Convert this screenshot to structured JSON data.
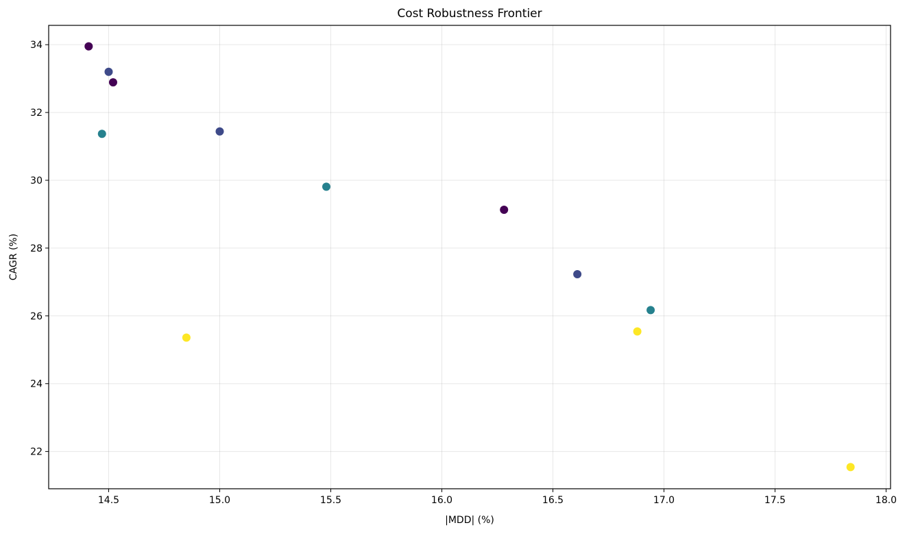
{
  "chart_data": {
    "type": "scatter",
    "title": "Cost Robustness Frontier",
    "xlabel": "|MDD| (%)",
    "ylabel": "CAGR (%)",
    "xlim": [
      14.23,
      18.02
    ],
    "ylim": [
      20.9,
      34.57
    ],
    "xticks": [
      14.5,
      15.0,
      15.5,
      16.0,
      16.5,
      17.0,
      17.5,
      18.0
    ],
    "xtick_labels": [
      "14.5",
      "15.0",
      "15.5",
      "16.0",
      "16.5",
      "17.0",
      "17.5",
      "18.0"
    ],
    "yticks": [
      22,
      24,
      26,
      28,
      30,
      32,
      34
    ],
    "ytick_labels": [
      "22",
      "24",
      "26",
      "28",
      "30",
      "32",
      "34"
    ],
    "grid": true,
    "colormap": "viridis",
    "palette": [
      "#440154",
      "#3e4a89",
      "#26818e",
      "#fde725"
    ],
    "points": [
      {
        "x": 14.41,
        "y": 33.95,
        "c": 0
      },
      {
        "x": 14.52,
        "y": 32.89,
        "c": 0
      },
      {
        "x": 16.28,
        "y": 29.13,
        "c": 0
      },
      {
        "x": 14.5,
        "y": 33.2,
        "c": 1
      },
      {
        "x": 15.0,
        "y": 31.44,
        "c": 1
      },
      {
        "x": 16.61,
        "y": 27.23,
        "c": 1
      },
      {
        "x": 14.47,
        "y": 31.37,
        "c": 2
      },
      {
        "x": 15.48,
        "y": 29.81,
        "c": 2
      },
      {
        "x": 16.94,
        "y": 26.17,
        "c": 2
      },
      {
        "x": 14.85,
        "y": 25.36,
        "c": 3
      },
      {
        "x": 16.88,
        "y": 25.54,
        "c": 3
      },
      {
        "x": 17.84,
        "y": 21.54,
        "c": 3
      }
    ]
  }
}
